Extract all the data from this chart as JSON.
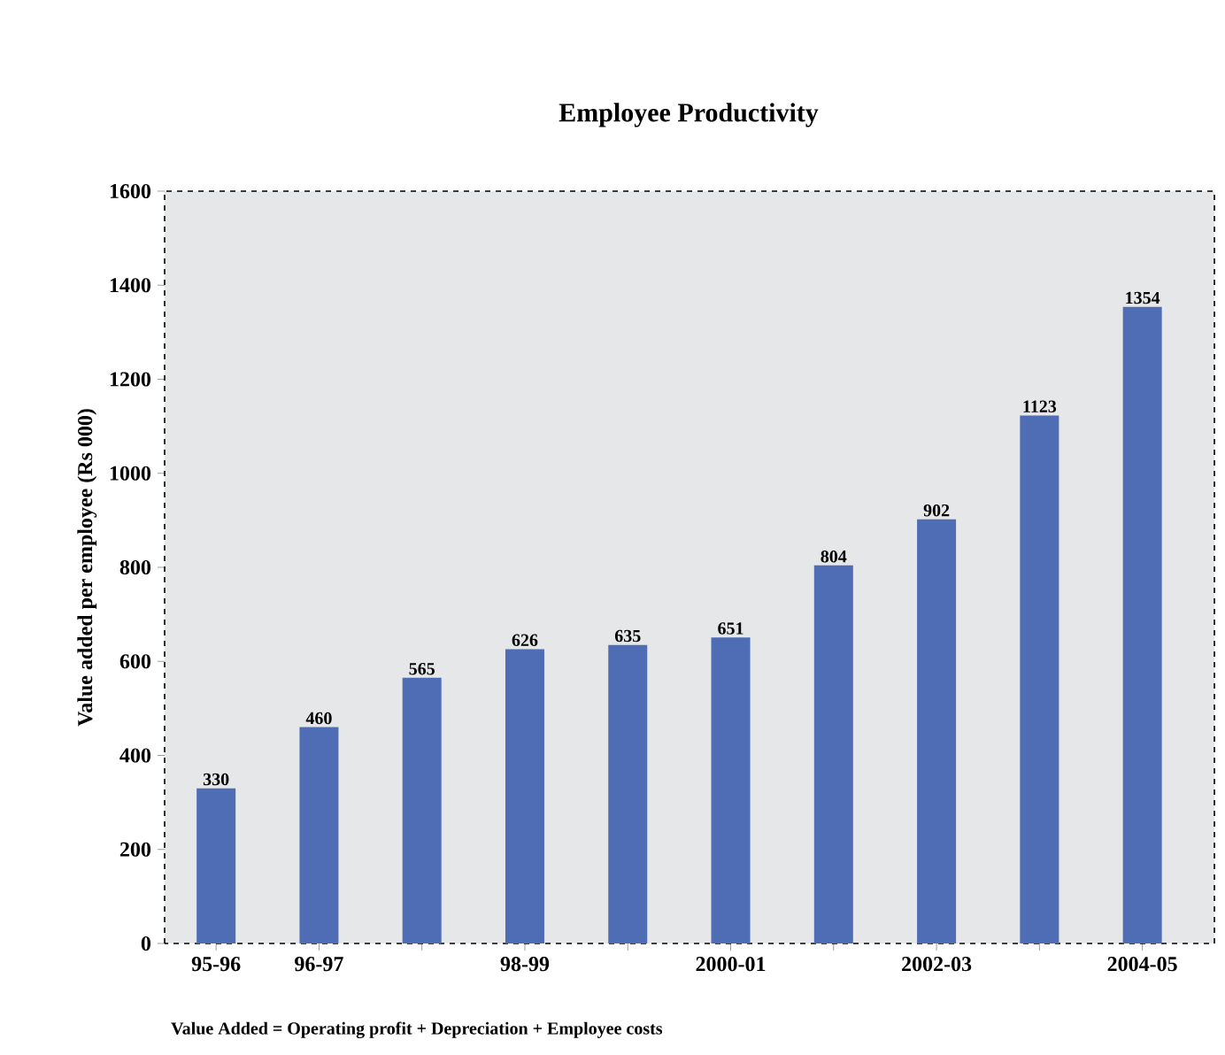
{
  "chart_data": {
    "type": "bar",
    "title": "Employee Productivity",
    "ylabel": "Value added per employee (Rs 000)",
    "categories": [
      "95-96",
      "96-97",
      null,
      "98-99",
      null,
      "2000-01",
      null,
      "2002-03",
      null,
      "2004-05"
    ],
    "values": [
      330,
      460,
      565,
      626,
      635,
      651,
      804,
      902,
      1123,
      1354
    ],
    "color": "#4f6db5",
    "data_labels": true,
    "ylim": [
      0,
      1600
    ],
    "yticks": [
      0,
      200,
      400,
      600,
      800,
      1000,
      1200,
      1400,
      1600
    ],
    "annotations": [
      "Value Added = Operating profit + Depreciation + Employee costs"
    ]
  }
}
